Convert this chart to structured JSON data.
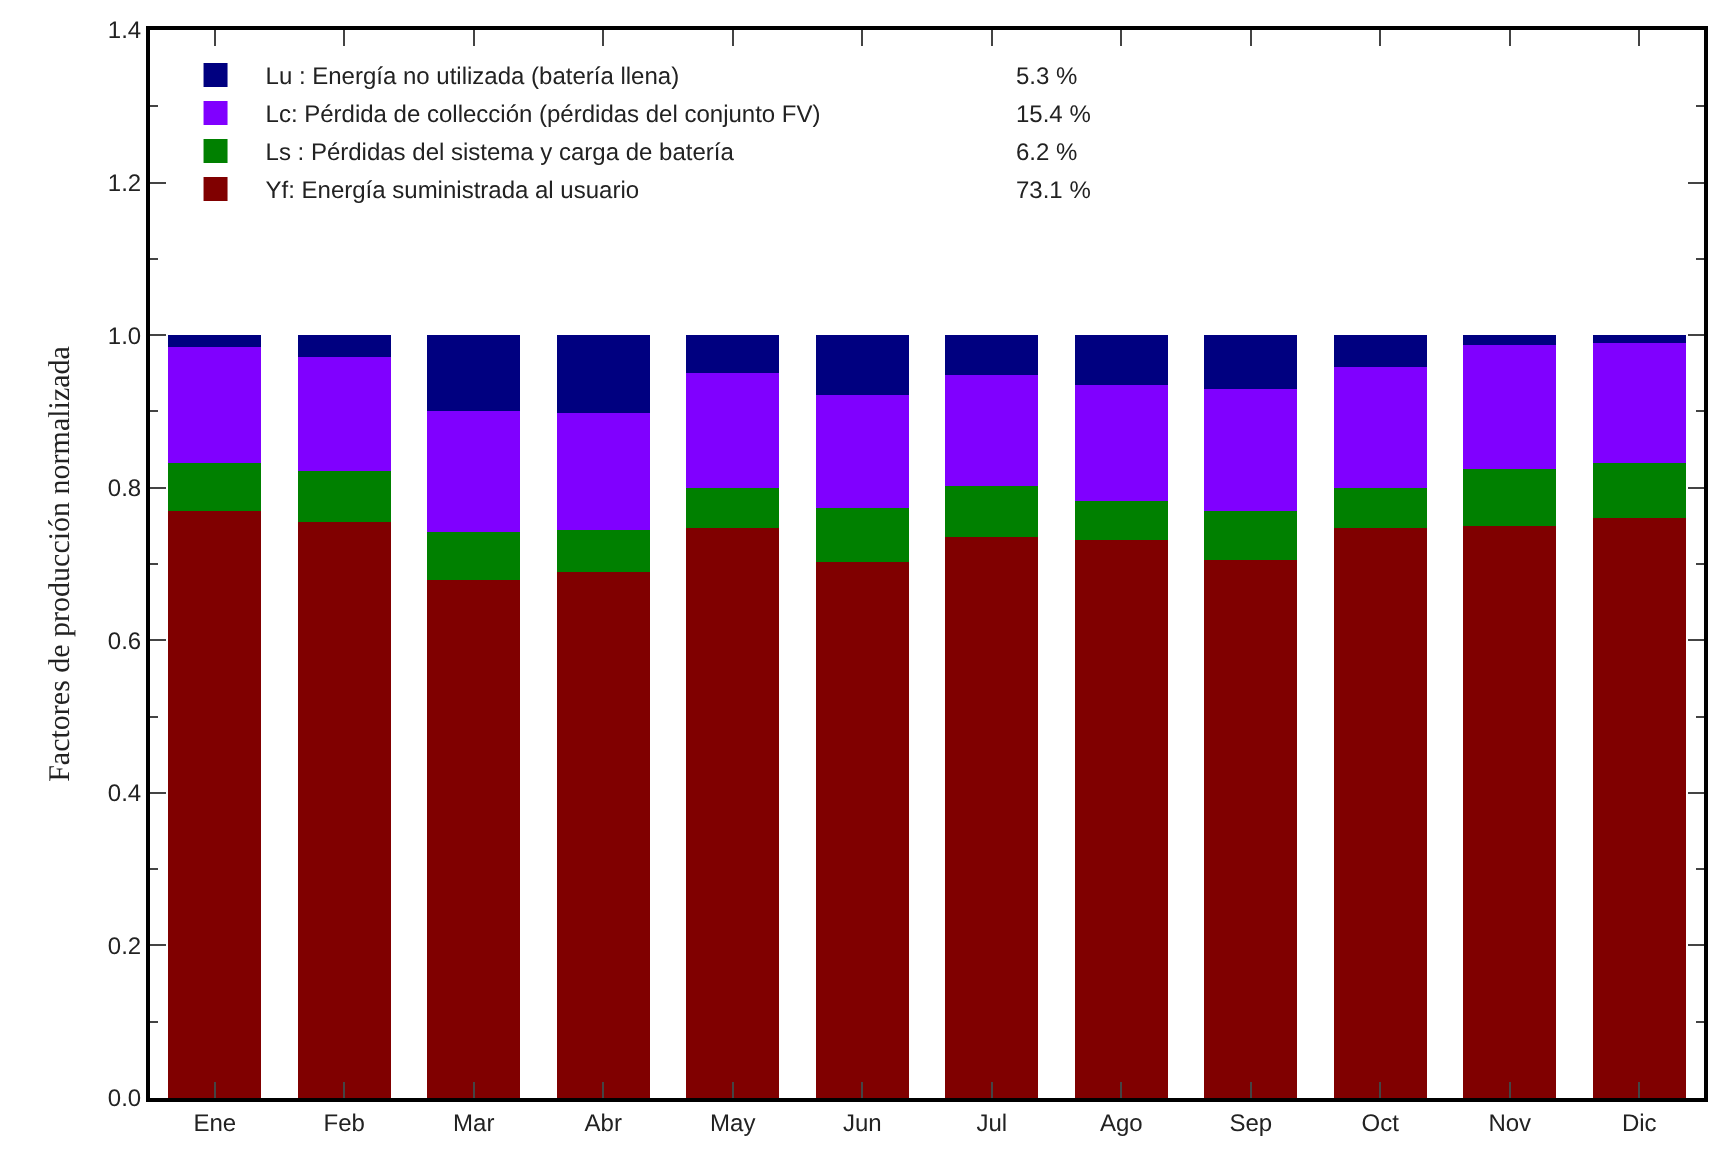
{
  "chart_data": {
    "type": "bar",
    "stacked": true,
    "ylabel": "Factores de producción normalizada",
    "categories": [
      "Ene",
      "Feb",
      "Mar",
      "Abr",
      "May",
      "Jun",
      "Jul",
      "Ago",
      "Sep",
      "Oct",
      "Nov",
      "Dic"
    ],
    "series": [
      {
        "name": "Yf: Energía suministrada al usuario",
        "color": "#800000",
        "values": [
          0.77,
          0.755,
          0.679,
          0.689,
          0.747,
          0.702,
          0.736,
          0.731,
          0.705,
          0.747,
          0.75,
          0.76
        ]
      },
      {
        "name": "Ls : Pérdidas del sistema y carga de batería",
        "color": "#008000",
        "values": [
          0.063,
          0.067,
          0.063,
          0.055,
          0.052,
          0.071,
          0.066,
          0.052,
          0.065,
          0.052,
          0.075,
          0.073
        ]
      },
      {
        "name": "Lc: Pérdida de collección (pérdidas del conjunto FV)",
        "color": "#8000ff",
        "values": [
          0.151,
          0.149,
          0.159,
          0.154,
          0.151,
          0.149,
          0.146,
          0.152,
          0.16,
          0.159,
          0.162,
          0.157
        ]
      },
      {
        "name": "Lu : Energía no utilizada (batería llena)",
        "color": "#000080",
        "values": [
          0.016,
          0.029,
          0.099,
          0.102,
          0.05,
          0.078,
          0.052,
          0.065,
          0.07,
          0.042,
          0.013,
          0.01
        ]
      }
    ],
    "annotations": [
      "73.1 %",
      "6.2 %",
      "15.4 %",
      "5.3 %"
    ],
    "ylim": [
      0,
      1.4
    ],
    "yticks": [
      {
        "value": 0,
        "label": "0.0"
      },
      0.2,
      0.4,
      0.6,
      0.8,
      {
        "value": 1,
        "label": "1.0"
      },
      1.2,
      1.4
    ],
    "legend": "top left"
  }
}
